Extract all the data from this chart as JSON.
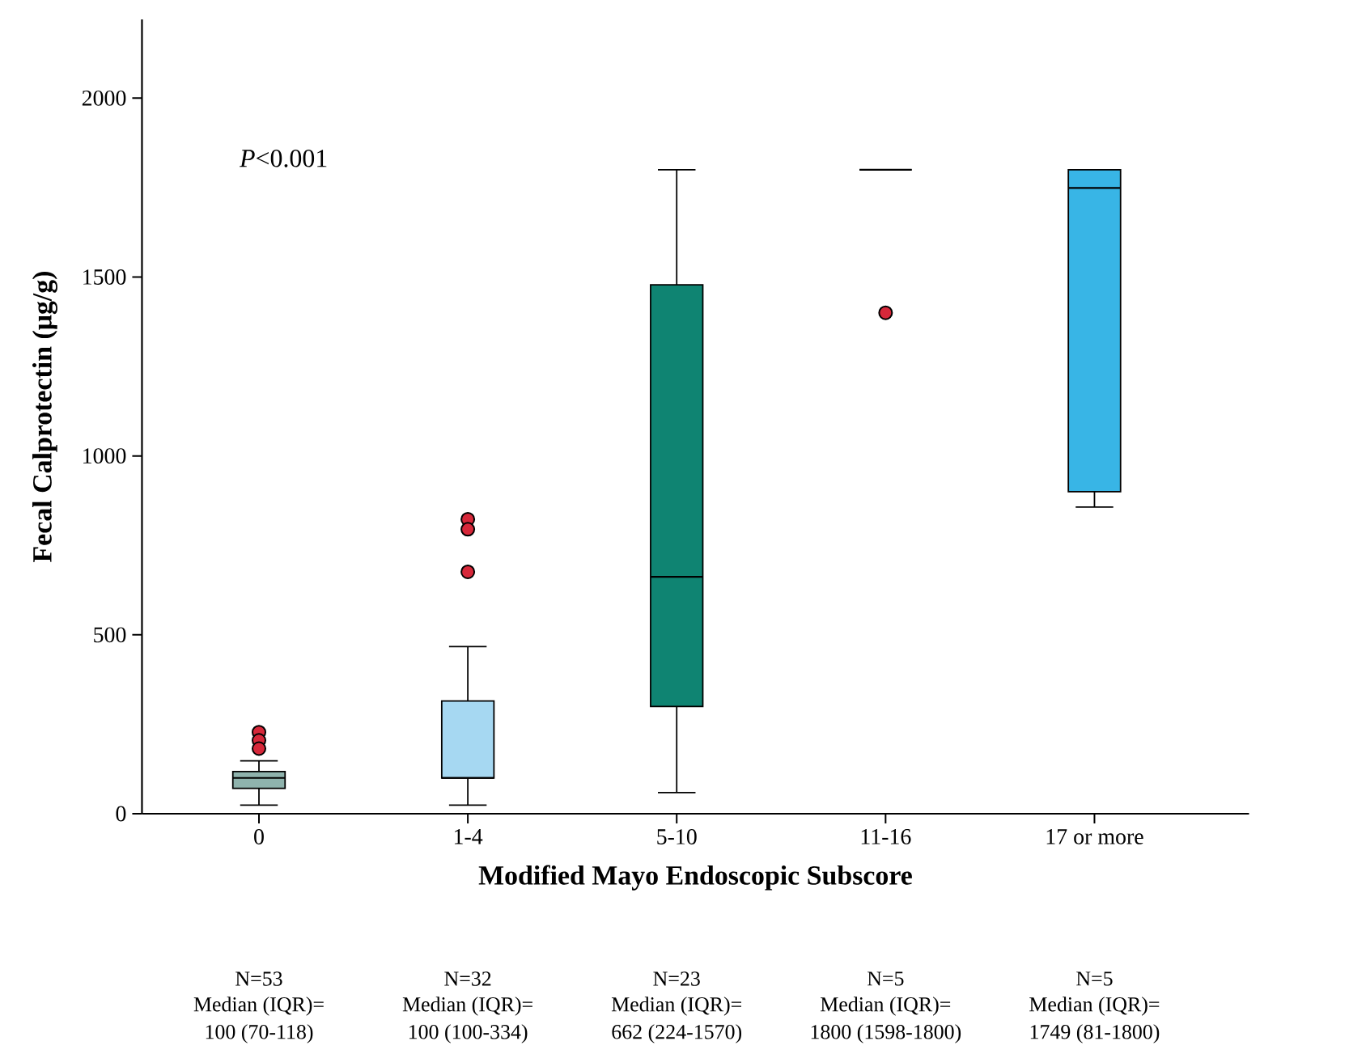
{
  "chart_data": {
    "type": "box",
    "xlabel": "Modified Mayo Endoscopic Subscore",
    "ylabel": "Fecal Calprotectin (μg/g)",
    "categories": [
      "0",
      "1-4",
      "5-10",
      "11-16",
      "17 or more"
    ],
    "colors": [
      "#8fb3ad",
      "#a6d8f2",
      "#0f8472",
      "#000000",
      "#38b5e6"
    ],
    "ylim": [
      0,
      2220
    ],
    "yticks": [
      0,
      500,
      1000,
      1500,
      2000
    ],
    "marker": "circle",
    "boxes": [
      {
        "low": 24,
        "q1": 71,
        "median": 100,
        "q3": 118,
        "high": 148,
        "outliers": [
          228,
          205,
          182
        ]
      },
      {
        "low": 24,
        "q1": 100,
        "median": 100,
        "q3": 315,
        "high": 467,
        "outliers": [
          823,
          795,
          676
        ]
      },
      {
        "low": 59,
        "q1": 300,
        "median": 662,
        "q3": 1478,
        "high": 1800
      },
      {
        "low": 1800,
        "q1": 1800,
        "median": 1800,
        "q3": 1800,
        "high": 1800,
        "outliers": [
          1400
        ]
      },
      {
        "low": 857,
        "q1": 900,
        "median": 1749,
        "q3": 1800,
        "high": 1800
      }
    ],
    "annotations": [
      "*P*<0.001",
      "N=53",
      "Median (IQR)=",
      "100 (70-118)",
      "N=32",
      "Median (IQR)=",
      "100 (100-334)",
      "N=23",
      "Median (IQR)=",
      "662 (224-1570)",
      "N=5",
      "Median (IQR)=",
      "1800 (1598-1800)",
      "N=5",
      "Median (IQR)=",
      "1749 (81-1800)"
    ]
  }
}
